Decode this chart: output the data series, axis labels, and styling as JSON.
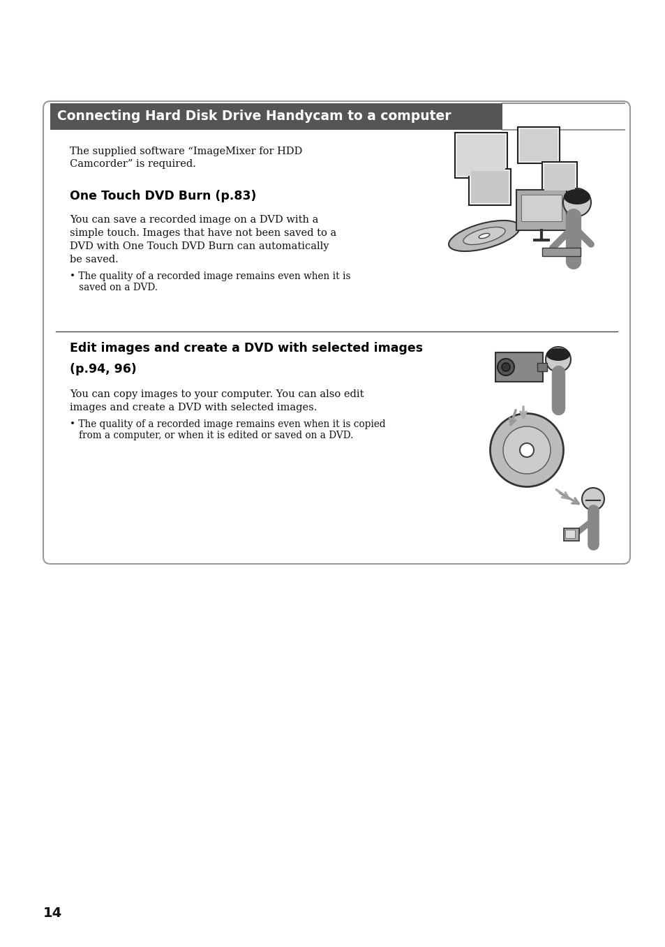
{
  "page_bg": "#ffffff",
  "header_bg": "#555555",
  "header_text": "Connecting Hard Disk Drive Handycam to a computer",
  "header_text_color": "#ffffff",
  "box_border_color": "#999999",
  "intro_text": "The supplied software “ImageMixer for HDD\nCamcorder” is required.",
  "section1_title": "One Touch DVD Burn (p.83)",
  "section1_body1": "You can save a recorded image on a DVD with a",
  "section1_body2": "simple touch. Images that have not been saved to a",
  "section1_body3": "DVD with One Touch DVD Burn can automatically",
  "section1_body4": "be saved.",
  "section1_bullet1": "• The quality of a recorded image remains even when it is",
  "section1_bullet2": "   saved on a DVD.",
  "section2_title1": "Edit images and create a DVD with selected images",
  "section2_title2": "(p.94, 96)",
  "section2_body1": "You can copy images to your computer. You can also edit",
  "section2_body2": "images and create a DVD with selected images.",
  "section2_bullet1": "• The quality of a recorded image remains even when it is copied",
  "section2_bullet2": "   from a computer, or when it is edited or saved on a DVD.",
  "page_number": "14",
  "divider_color": "#444444",
  "body_text_color": "#111111",
  "title_color": "#000000"
}
